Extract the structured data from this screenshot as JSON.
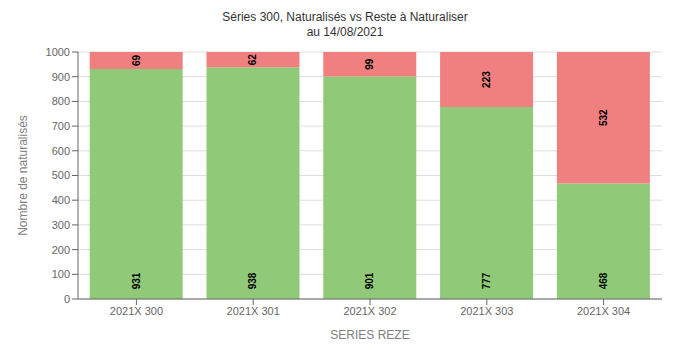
{
  "chart_data": {
    "type": "bar",
    "title": "Séries 300, Naturalisés vs Reste à Naturaliser",
    "subtitle": "au 14/08/2021",
    "xlabel": "SERIES REZE",
    "ylabel": "Nombre de naturalisés",
    "categories": [
      "2021X 300",
      "2021X 301",
      "2021X 302",
      "2021X 303",
      "2021X 304"
    ],
    "series": [
      {
        "color": "#90C978",
        "values": [
          931,
          938,
          901,
          777,
          468
        ]
      },
      {
        "color": "#F08080",
        "values": [
          69,
          62,
          99,
          223,
          532
        ]
      }
    ],
    "stacked": true,
    "data_labels": true,
    "grid": true,
    "ylim": [
      0,
      1000
    ],
    "yticks": [
      0,
      100,
      200,
      300,
      400,
      500,
      600,
      700,
      800,
      900,
      1000
    ]
  }
}
